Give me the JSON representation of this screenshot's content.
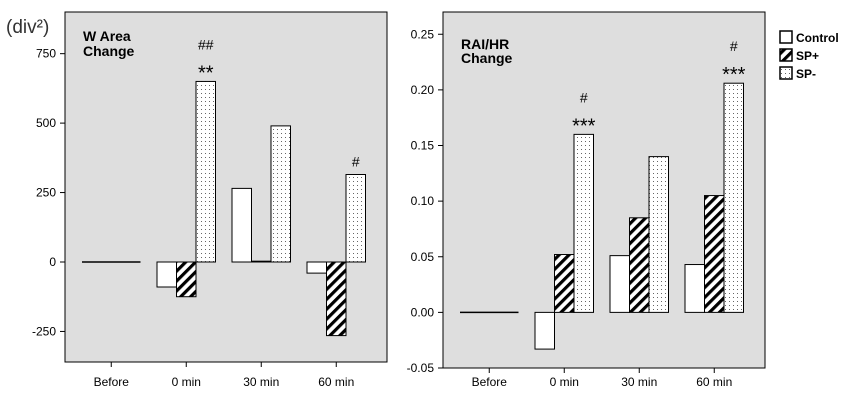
{
  "legend": {
    "items": [
      {
        "label": "Control",
        "pattern": "control"
      },
      {
        "label": "SP+",
        "pattern": "sp_plus"
      },
      {
        "label": "SP-",
        "pattern": "sp_minus"
      }
    ],
    "placement": "top-right"
  },
  "colors": {
    "plot_background": "#dedede",
    "bar_fill": "#ffffff",
    "ink": "#000000"
  },
  "chart_data": [
    {
      "type": "bar",
      "unit_label": "(div²)",
      "title": "W Area",
      "title_line2": "Change",
      "categories": [
        "Before",
        "0 min",
        "30 min",
        "60 min"
      ],
      "series": [
        {
          "name": "Control",
          "values": [
            0,
            -90,
            265,
            -40
          ]
        },
        {
          "name": "SP+",
          "values": [
            0,
            -125,
            3,
            -265
          ]
        },
        {
          "name": "SP-",
          "values": [
            0,
            650,
            490,
            315
          ]
        }
      ],
      "ylim": [
        -360,
        900
      ],
      "yticks": [
        -250,
        0,
        250,
        500,
        750
      ],
      "ytick_labels": [
        "-250",
        "0",
        "250",
        "500",
        "750"
      ],
      "annotations": [
        {
          "category": "0 min",
          "series": "SP-",
          "lines": [
            "##",
            "**"
          ]
        },
        {
          "category": "60 min",
          "series": "SP-",
          "lines": [
            "#"
          ]
        }
      ],
      "grid": false
    },
    {
      "type": "bar",
      "unit_label": "",
      "title": "RAI/HR",
      "title_line2": "Change",
      "categories": [
        "Before",
        "0 min",
        "30 min",
        "60 min"
      ],
      "series": [
        {
          "name": "Control",
          "values": [
            0,
            -0.033,
            0.051,
            0.043
          ]
        },
        {
          "name": "SP+",
          "values": [
            0,
            0.052,
            0.085,
            0.105
          ]
        },
        {
          "name": "SP-",
          "values": [
            0,
            0.16,
            0.14,
            0.206
          ]
        }
      ],
      "ylim": [
        -0.05,
        0.27
      ],
      "yticks": [
        -0.05,
        0.0,
        0.05,
        0.1,
        0.15,
        0.2,
        0.25
      ],
      "ytick_labels": [
        "-0.05",
        "0.00",
        "0.05",
        "0.10",
        "0.15",
        "0.20",
        "0.25"
      ],
      "annotations": [
        {
          "category": "0 min",
          "series": "SP-",
          "lines": [
            "#",
            "***"
          ]
        },
        {
          "category": "60 min",
          "series": "SP-",
          "lines": [
            "#",
            "***"
          ]
        }
      ],
      "grid": false
    }
  ]
}
